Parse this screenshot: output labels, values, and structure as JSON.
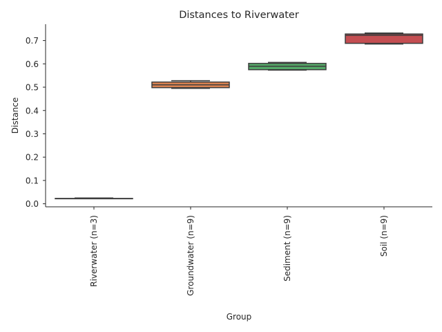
{
  "chart_data": {
    "type": "box",
    "title": "Distances to Riverwater",
    "xlabel": "Group",
    "ylabel": "Distance",
    "ylim": [
      -0.013,
      0.77
    ],
    "yticks": [
      0.0,
      0.1,
      0.2,
      0.3,
      0.4,
      0.5,
      0.6,
      0.7
    ],
    "grid": false,
    "categories": [
      "Riverwater (n=3)",
      "Groundwater (n=9)",
      "Sediment (n=9)",
      "Soil (n=9)"
    ],
    "colors": [
      "#4c72b0",
      "#dd8452",
      "#55a868",
      "#c44e52"
    ],
    "boxes": [
      {
        "min": 0.022,
        "q1": 0.022,
        "median": 0.022,
        "q3": 0.023,
        "max": 0.025
      },
      {
        "min": 0.495,
        "q1": 0.498,
        "median": 0.51,
        "q3": 0.522,
        "max": 0.528
      },
      {
        "min": 0.573,
        "q1": 0.575,
        "median": 0.59,
        "q3": 0.602,
        "max": 0.606
      },
      {
        "min": 0.685,
        "q1": 0.688,
        "median": 0.722,
        "q3": 0.728,
        "max": 0.732
      }
    ]
  }
}
